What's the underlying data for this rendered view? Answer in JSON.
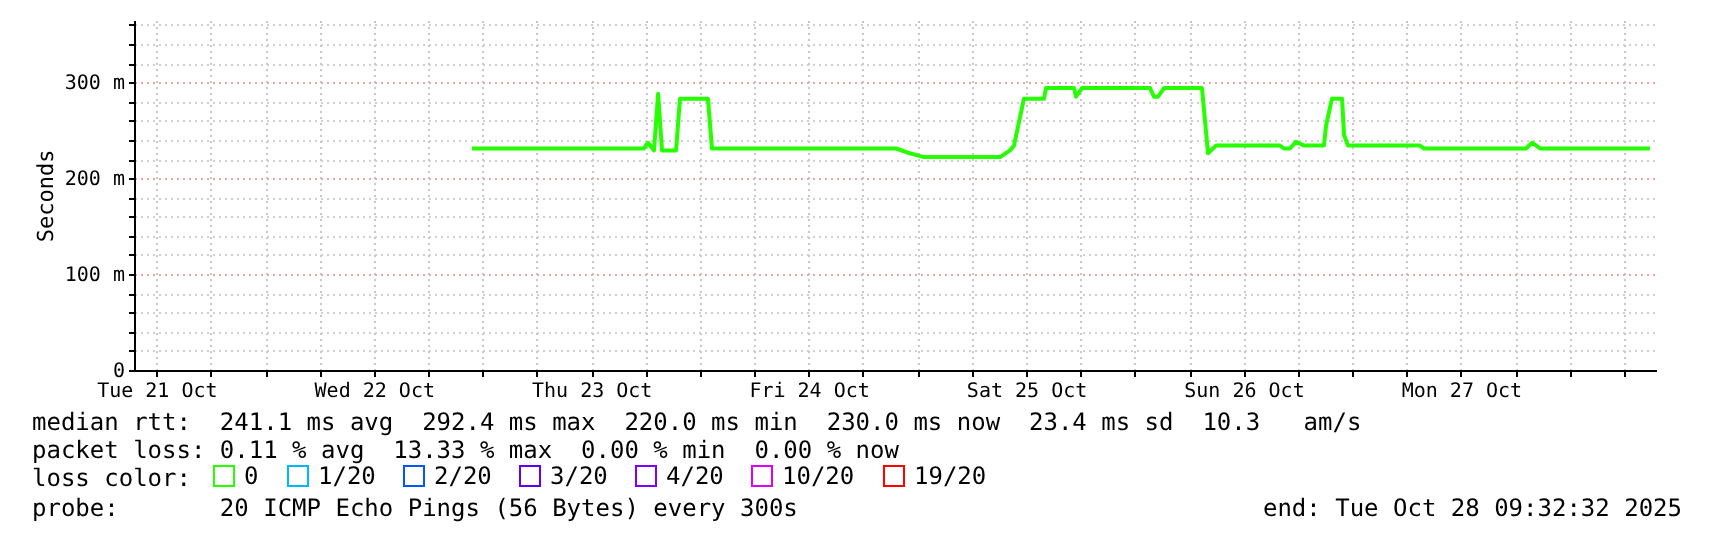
{
  "chart_data": {
    "type": "line",
    "ylabel": "Seconds",
    "legend_title": "loss color:",
    "legend": "bottom",
    "grid": true,
    "annotations": [
      "median rtt:  241.1 ms avg  292.4 ms max  220.0 ms min  230.0 ms now  23.4 ms sd  10.3   am/s",
      "packet loss: 0.11 % avg  13.33 % max  0.00 % min  0.00 % now",
      "probe:       20 ICMP Echo Pings (56 Bytes) every 300s",
      "end: Tue Oct 28 09:32:32 2025"
    ],
    "xlim": [
      "2025-10-21T09:32",
      "2025-10-28T09:32"
    ],
    "xticks": [
      {
        "value": "2025-10-21T12:00",
        "label": "Tue 21 Oct"
      },
      {
        "value": "2025-10-21T18:00",
        "label": null
      },
      {
        "value": "2025-10-22T00:00",
        "label": null
      },
      {
        "value": "2025-10-22T06:00",
        "label": null
      },
      {
        "value": "2025-10-22T12:00",
        "label": "Wed 22 Oct"
      },
      {
        "value": "2025-10-22T18:00",
        "label": null
      },
      {
        "value": "2025-10-23T00:00",
        "label": null
      },
      {
        "value": "2025-10-23T06:00",
        "label": null
      },
      {
        "value": "2025-10-23T12:00",
        "label": "Thu 23 Oct"
      },
      {
        "value": "2025-10-23T18:00",
        "label": null
      },
      {
        "value": "2025-10-24T00:00",
        "label": null
      },
      {
        "value": "2025-10-24T06:00",
        "label": null
      },
      {
        "value": "2025-10-24T12:00",
        "label": "Fri 24 Oct"
      },
      {
        "value": "2025-10-24T18:00",
        "label": null
      },
      {
        "value": "2025-10-25T00:00",
        "label": null
      },
      {
        "value": "2025-10-25T06:00",
        "label": null
      },
      {
        "value": "2025-10-25T12:00",
        "label": "Sat 25 Oct"
      },
      {
        "value": "2025-10-25T18:00",
        "label": null
      },
      {
        "value": "2025-10-26T00:00",
        "label": null
      },
      {
        "value": "2025-10-26T06:00",
        "label": null
      },
      {
        "value": "2025-10-26T12:00",
        "label": "Sun 26 Oct"
      },
      {
        "value": "2025-10-26T18:00",
        "label": null
      },
      {
        "value": "2025-10-27T00:00",
        "label": null
      },
      {
        "value": "2025-10-27T06:00",
        "label": null
      },
      {
        "value": "2025-10-27T12:00",
        "label": "Mon 27 Oct"
      },
      {
        "value": "2025-10-27T18:00",
        "label": null
      },
      {
        "value": "2025-10-28T00:00",
        "label": null
      },
      {
        "value": "2025-10-28T06:00",
        "label": null
      }
    ],
    "ylim": [
      0,
      365
    ],
    "yticks": [
      0,
      {
        "value": 20,
        "label": null
      },
      {
        "value": 40,
        "label": null
      },
      {
        "value": 60,
        "label": null
      },
      {
        "value": 80,
        "label": null
      },
      {
        "value": 100,
        "label": "100 m"
      },
      {
        "value": 120,
        "label": null
      },
      {
        "value": 140,
        "label": null
      },
      {
        "value": 160,
        "label": null
      },
      {
        "value": 180,
        "label": null
      },
      {
        "value": 200,
        "label": "200 m"
      },
      {
        "value": 220,
        "label": null
      },
      {
        "value": 240,
        "label": null
      },
      {
        "value": 260,
        "label": null
      },
      {
        "value": 280,
        "label": null
      },
      {
        "value": 300,
        "label": "300 m"
      },
      {
        "value": 320,
        "label": null
      },
      {
        "value": 340,
        "label": null
      },
      {
        "value": 360,
        "label": null
      }
    ],
    "series": [
      {
        "name": "0",
        "color": "#26ff00",
        "x": [
          "2025-10-22T22:50",
          "2025-10-23T17:50",
          "2025-10-23T18:16",
          "2025-10-23T18:56",
          "2025-10-23T19:23",
          "2025-10-23T19:49",
          "2025-10-23T21:22",
          "2025-10-23T21:48",
          "2025-10-24T00:53",
          "2025-10-24T01:20",
          "2025-10-24T21:39",
          "2025-10-24T23:11",
          "2025-10-25T00:44",
          "2025-10-25T09:08",
          "2025-10-25T10:14",
          "2025-10-25T10:40",
          "2025-10-25T11:46",
          "2025-10-25T13:59",
          "2025-10-25T14:12",
          "2025-10-25T17:18",
          "2025-10-25T17:31",
          "2025-10-25T18:11",
          "2025-10-26T01:41",
          "2025-10-26T02:07",
          "2025-10-26T02:34",
          "2025-10-26T03:14",
          "2025-10-26T07:25",
          "2025-10-26T08:05",
          "2025-10-26T08:58",
          "2025-10-26T16:02",
          "2025-10-26T16:28",
          "2025-10-26T17:08",
          "2025-10-26T17:48",
          "2025-10-26T18:41",
          "2025-10-26T20:53",
          "2025-10-26T21:07",
          "2025-10-26T21:46",
          "2025-10-26T22:53",
          "2025-10-26T23:06",
          "2025-10-26T23:32",
          "2025-10-27T07:29",
          "2025-10-27T07:56",
          "2025-10-27T19:11",
          "2025-10-27T19:51",
          "2025-10-27T20:44",
          "2025-10-28T08:52"
        ],
        "values": [
          231,
          231,
          237,
          229,
          288,
          229,
          229,
          283,
          283,
          231,
          231,
          226,
          222,
          222,
          229,
          234,
          283,
          283,
          294,
          294,
          285,
          294,
          294,
          285,
          285,
          294,
          294,
          226,
          234,
          234,
          231,
          231,
          238,
          234,
          234,
          255,
          283,
          283,
          245,
          234,
          234,
          231,
          231,
          237,
          231,
          231
        ]
      },
      {
        "name": "1/20",
        "color": "#00b8ff"
      },
      {
        "name": "2/20",
        "color": "#0059ff"
      },
      {
        "name": "3/20",
        "color": "#5e00ff"
      },
      {
        "name": "4/20",
        "color": "#7e00ff"
      },
      {
        "name": "10/20",
        "color": "#dd00ff"
      },
      {
        "name": "19/20",
        "color": "#ff0000"
      }
    ]
  }
}
